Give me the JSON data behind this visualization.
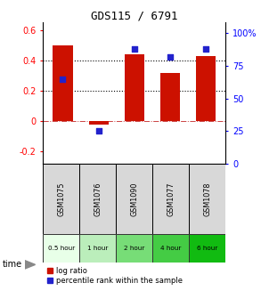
{
  "title": "GDS115 / 6791",
  "samples": [
    "GSM1075",
    "GSM1076",
    "GSM1090",
    "GSM1077",
    "GSM1078"
  ],
  "time_labels": [
    "0.5 hour",
    "1 hour",
    "2 hour",
    "4 hour",
    "6 hour"
  ],
  "time_colors": [
    "#e8ffe8",
    "#bbeebb",
    "#77dd77",
    "#44cc44",
    "#11bb11"
  ],
  "log_ratio": [
    0.5,
    -0.022,
    0.44,
    0.32,
    0.43
  ],
  "percentile_rank": [
    65,
    25,
    88,
    82,
    88
  ],
  "bar_color": "#cc1100",
  "dot_color": "#2222cc",
  "ylim_left": [
    -0.28,
    0.65
  ],
  "ylim_right": [
    0,
    108.33
  ],
  "yticks_left": [
    -0.2,
    0.0,
    0.2,
    0.4,
    0.6
  ],
  "yticks_right": [
    0,
    25,
    50,
    75,
    100
  ],
  "hlines": [
    0.2,
    0.4
  ],
  "legend_log": "log ratio",
  "legend_pct": "percentile rank within the sample",
  "sample_bg": "#d8d8d8"
}
